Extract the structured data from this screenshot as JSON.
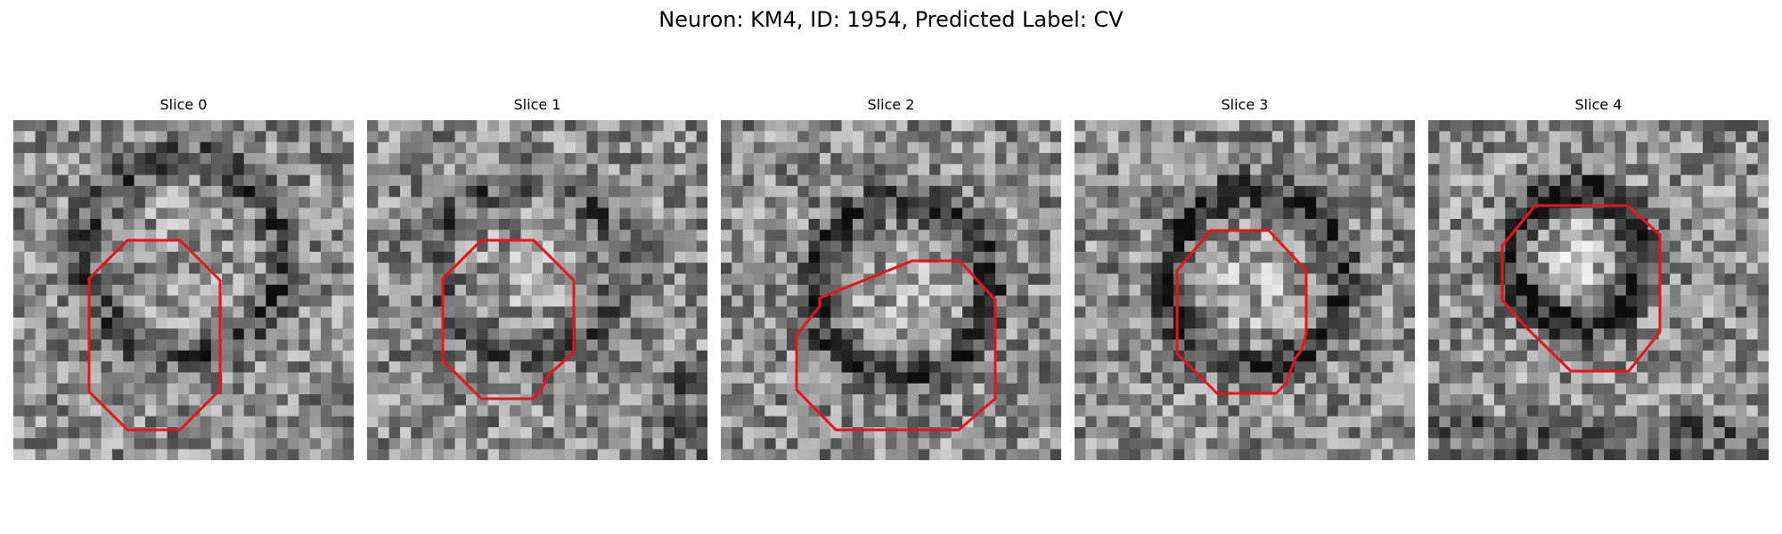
{
  "figure": {
    "title": "Neuron: KM4, ID: 1954, Predicted Label: CV"
  },
  "outline_color": "#e8141c",
  "slices": [
    {
      "title": "Slice 0"
    },
    {
      "title": "Slice 1"
    },
    {
      "title": "Slice 2"
    },
    {
      "title": "Slice 3"
    },
    {
      "title": "Slice 4"
    }
  ]
}
